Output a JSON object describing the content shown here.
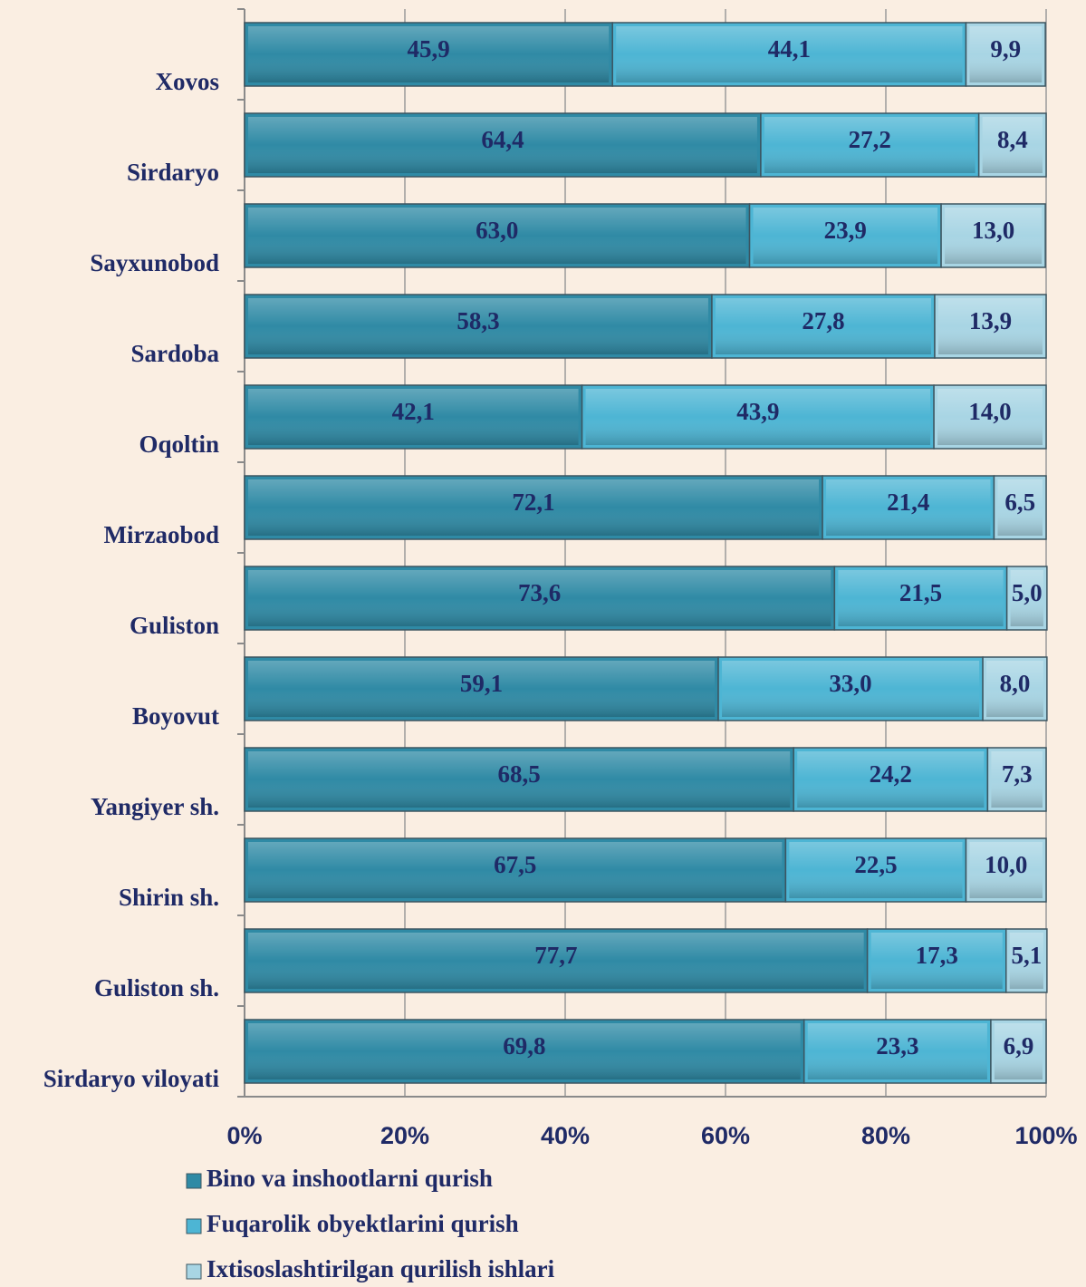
{
  "chart_data": {
    "type": "stacked_barh",
    "categories": [
      "Xovos",
      "Sirdaryo",
      "Sayxunobod",
      "Sardoba",
      "Oqoltin",
      "Mirzaobod",
      "Guliston",
      "Boyovut",
      "Yangiyer sh.",
      "Shirin sh.",
      "Guliston sh.",
      "Sirdaryo viloyati"
    ],
    "series": [
      {
        "name": "Bino va inshootlarni qurish",
        "color": "#2f8aa5",
        "values": [
          45.9,
          64.4,
          63.0,
          58.3,
          42.1,
          72.1,
          73.6,
          59.1,
          68.5,
          67.5,
          77.7,
          69.8
        ],
        "value_labels": [
          "45,9",
          "64,4",
          "63,0",
          "58,3",
          "42,1",
          "72,1",
          "73,6",
          "59,1",
          "68,5",
          "67,5",
          "77,7",
          "69,8"
        ]
      },
      {
        "name": "Fuqarolik obyektlarini qurish",
        "color": "#4db5d4",
        "values": [
          44.1,
          27.2,
          23.9,
          27.8,
          43.9,
          21.4,
          21.5,
          33.0,
          24.2,
          22.5,
          17.3,
          23.3
        ],
        "value_labels": [
          "44,1",
          "27,2",
          "23,9",
          "27,8",
          "43,9",
          "21,4",
          "21,5",
          "33,0",
          "24,2",
          "22,5",
          "17,3",
          "23,3"
        ]
      },
      {
        "name": "Ixtisoslashtirilgan qurilish ishlari",
        "color": "#a8d5e4",
        "values": [
          9.9,
          8.4,
          13.0,
          13.9,
          14.0,
          6.5,
          5.0,
          8.0,
          7.3,
          10.0,
          5.1,
          6.9
        ],
        "value_labels": [
          "9,9",
          "8,4",
          "13,0",
          "13,9",
          "14,0",
          "6,5",
          "5,0",
          "8,0",
          "7,3",
          "10,0",
          "5,1",
          "6,9"
        ]
      }
    ],
    "xlim": [
      0,
      100
    ],
    "xticks": [
      {
        "value": 0,
        "label": "0%"
      },
      {
        "value": 20,
        "label": "20%"
      },
      {
        "value": 40,
        "label": "40%"
      },
      {
        "value": 60,
        "label": "60%"
      },
      {
        "value": 80,
        "label": "80%"
      },
      {
        "value": 100,
        "label": "100%"
      }
    ],
    "grid": true
  }
}
